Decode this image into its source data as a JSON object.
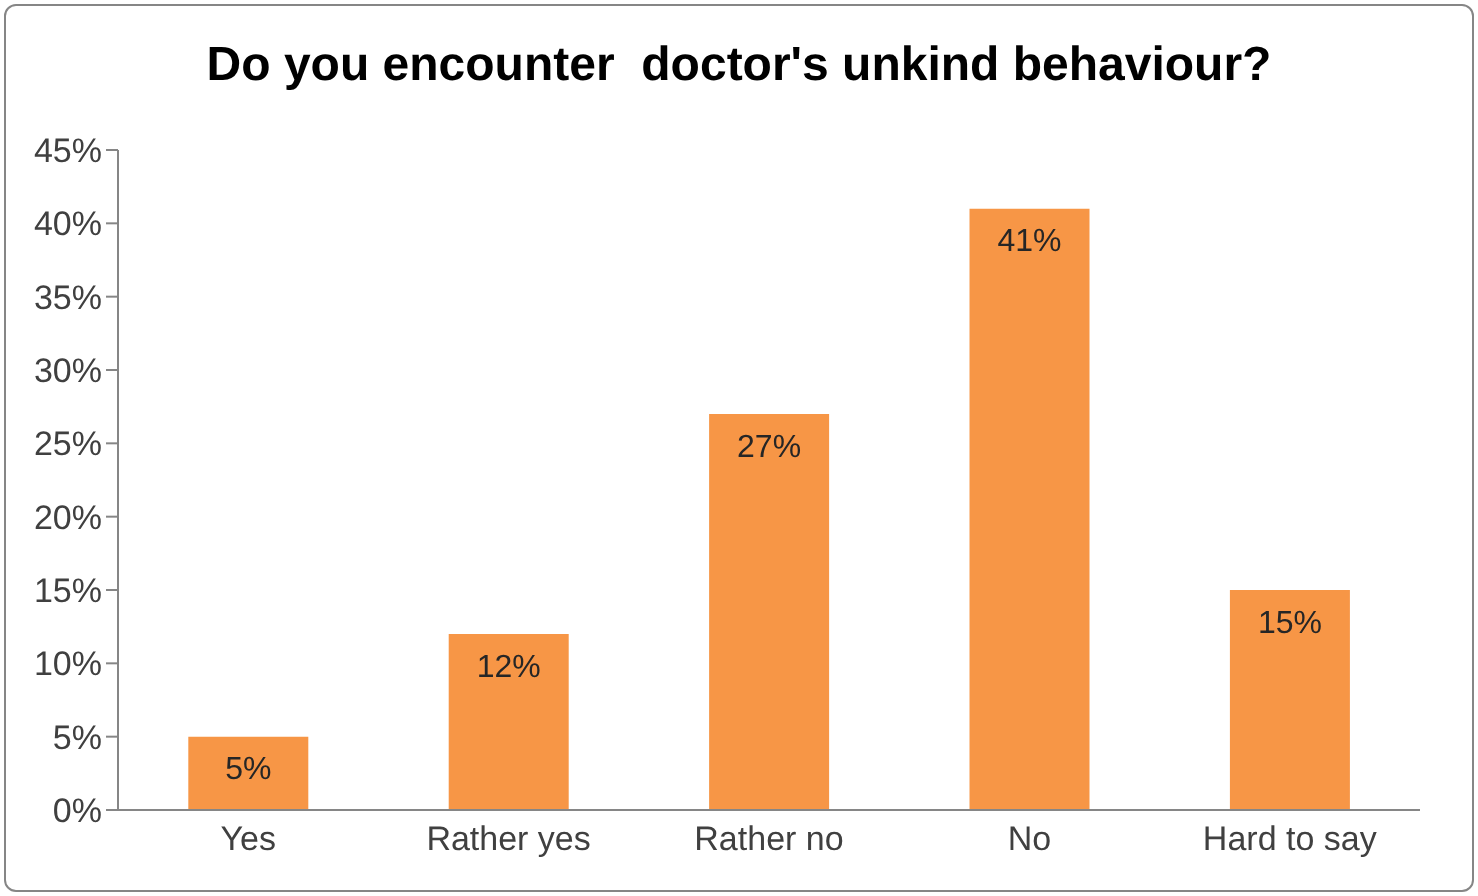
{
  "chart_data": {
    "type": "bar",
    "title": "Do you encounter  doctor's unkind behaviour?",
    "categories": [
      "Yes",
      "Rather yes",
      "Rather no",
      "No",
      "Hard to say"
    ],
    "values": [
      5,
      12,
      27,
      41,
      15
    ],
    "value_labels": [
      "5%",
      "12%",
      "27%",
      "41%",
      "15%"
    ],
    "color": "#f79646",
    "ylim": [
      0,
      45
    ],
    "yticks": [
      {
        "value": 0,
        "label": "0%"
      },
      {
        "value": 5,
        "label": "5%"
      },
      {
        "value": 10,
        "label": "10%"
      },
      {
        "value": 15,
        "label": "15%"
      },
      {
        "value": 20,
        "label": "20%"
      },
      {
        "value": 25,
        "label": "25%"
      },
      {
        "value": 30,
        "label": "30%"
      },
      {
        "value": 35,
        "label": "35%"
      },
      {
        "value": 40,
        "label": "40%"
      },
      {
        "value": 45,
        "label": "45%"
      }
    ],
    "grid": false
  }
}
